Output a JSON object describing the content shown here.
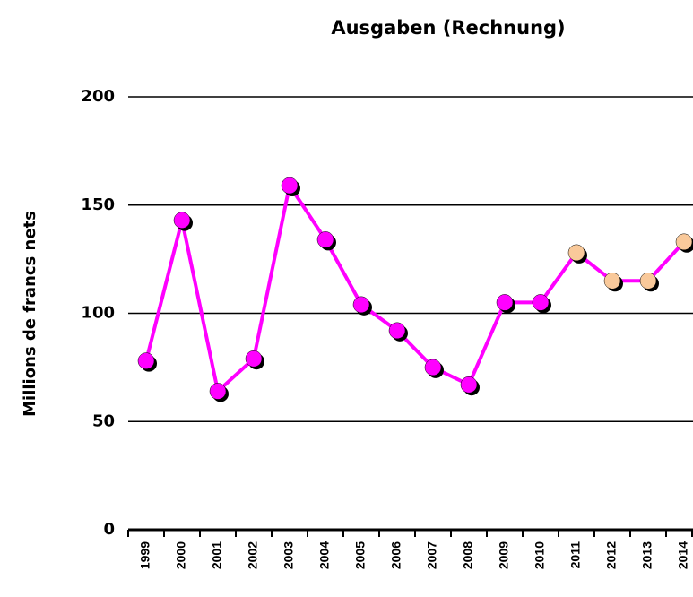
{
  "chart_data": {
    "type": "line",
    "title": "Ausgaben (Rechnung)",
    "y_label": "Millions de francs nets",
    "categories": [
      "1999",
      "2000",
      "2001",
      "2002",
      "2003",
      "2004",
      "2005",
      "2006",
      "2007",
      "2008",
      "2009",
      "2010",
      "2011",
      "2012",
      "2013",
      "2014"
    ],
    "values": [
      78,
      143,
      64,
      79,
      159,
      134,
      104,
      92,
      75,
      67,
      105,
      105,
      128,
      115,
      115,
      133
    ],
    "color": "#ff00ff",
    "marker_colors": [
      "#ff00ff",
      "#ff00ff",
      "#ff00ff",
      "#ff00ff",
      "#ff00ff",
      "#ff00ff",
      "#ff00ff",
      "#ff00ff",
      "#ff00ff",
      "#ff00ff",
      "#ff00ff",
      "#ff00ff",
      "#f9c99a",
      "#f9c99a",
      "#f9c99a",
      "#f9c99a"
    ],
    "ylim": [
      0,
      200
    ],
    "yticks": [
      0,
      50,
      100,
      150,
      200
    ],
    "grid": true
  }
}
